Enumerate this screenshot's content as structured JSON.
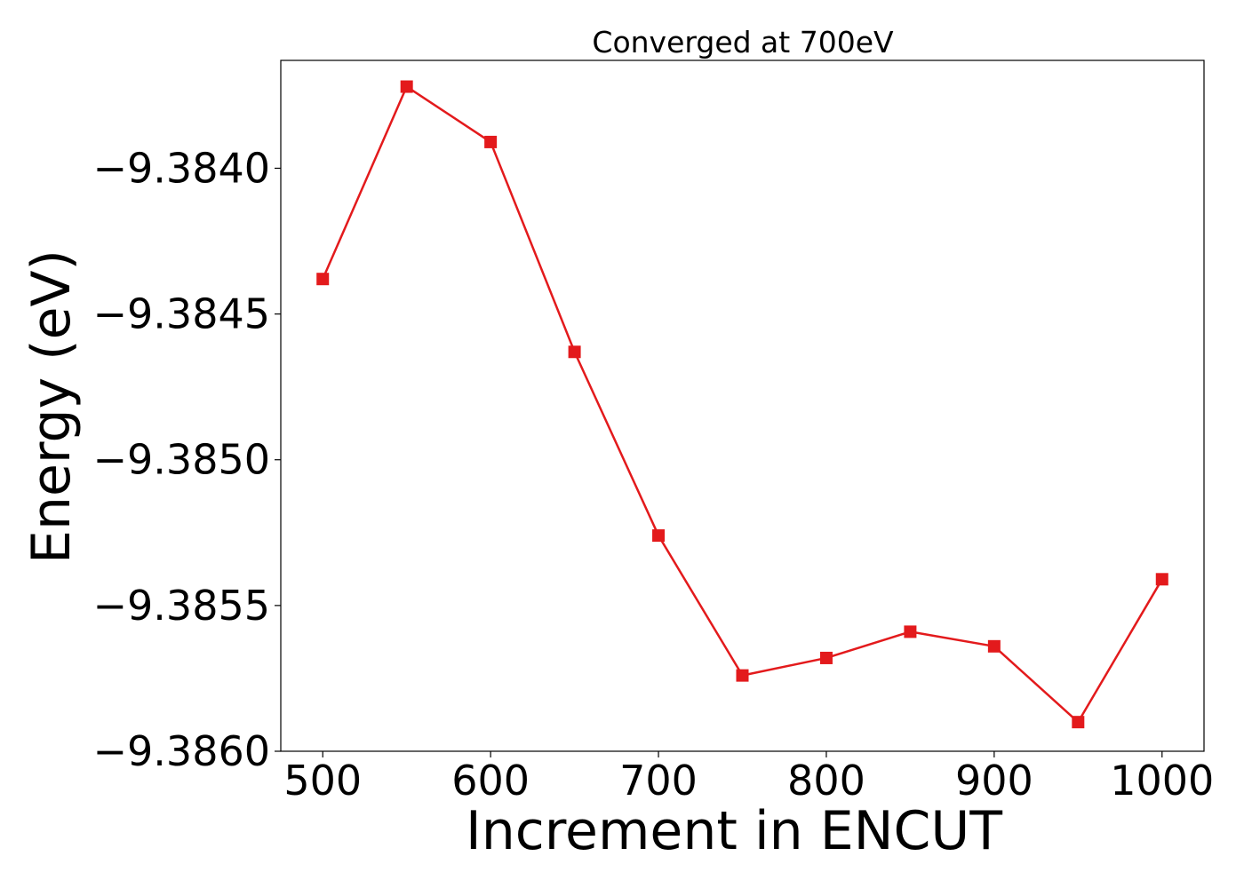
{
  "chart_data": {
    "type": "line",
    "title": "Converged at 700eV",
    "xlabel": "Increment in ENCUT",
    "ylabel": "Energy (eV)",
    "x": [
      500,
      550,
      600,
      650,
      700,
      750,
      800,
      850,
      900,
      950,
      1000
    ],
    "series": [
      {
        "name": "",
        "values": [
          -9.38438,
          -9.38372,
          -9.38391,
          -9.38463,
          -9.38526,
          -9.38574,
          -9.38568,
          -9.38559,
          -9.38564,
          -9.3859,
          -9.38541
        ],
        "color": "#e31a1c",
        "marker": "square"
      }
    ],
    "xlim": [
      475,
      1025
    ],
    "ylim": [
      -9.386,
      -9.38363
    ],
    "xticks": [
      500,
      600,
      700,
      800,
      900,
      1000
    ],
    "xtick_labels": [
      "500",
      "600",
      "700",
      "800",
      "900",
      "1000"
    ],
    "yticks": [
      -9.384,
      -9.3845,
      -9.385,
      -9.3855,
      -9.386
    ],
    "ytick_labels": [
      "−9.3840",
      "−9.3845",
      "−9.3850",
      "−9.3855",
      "−9.3860"
    ],
    "grid": false,
    "legend": "none"
  }
}
